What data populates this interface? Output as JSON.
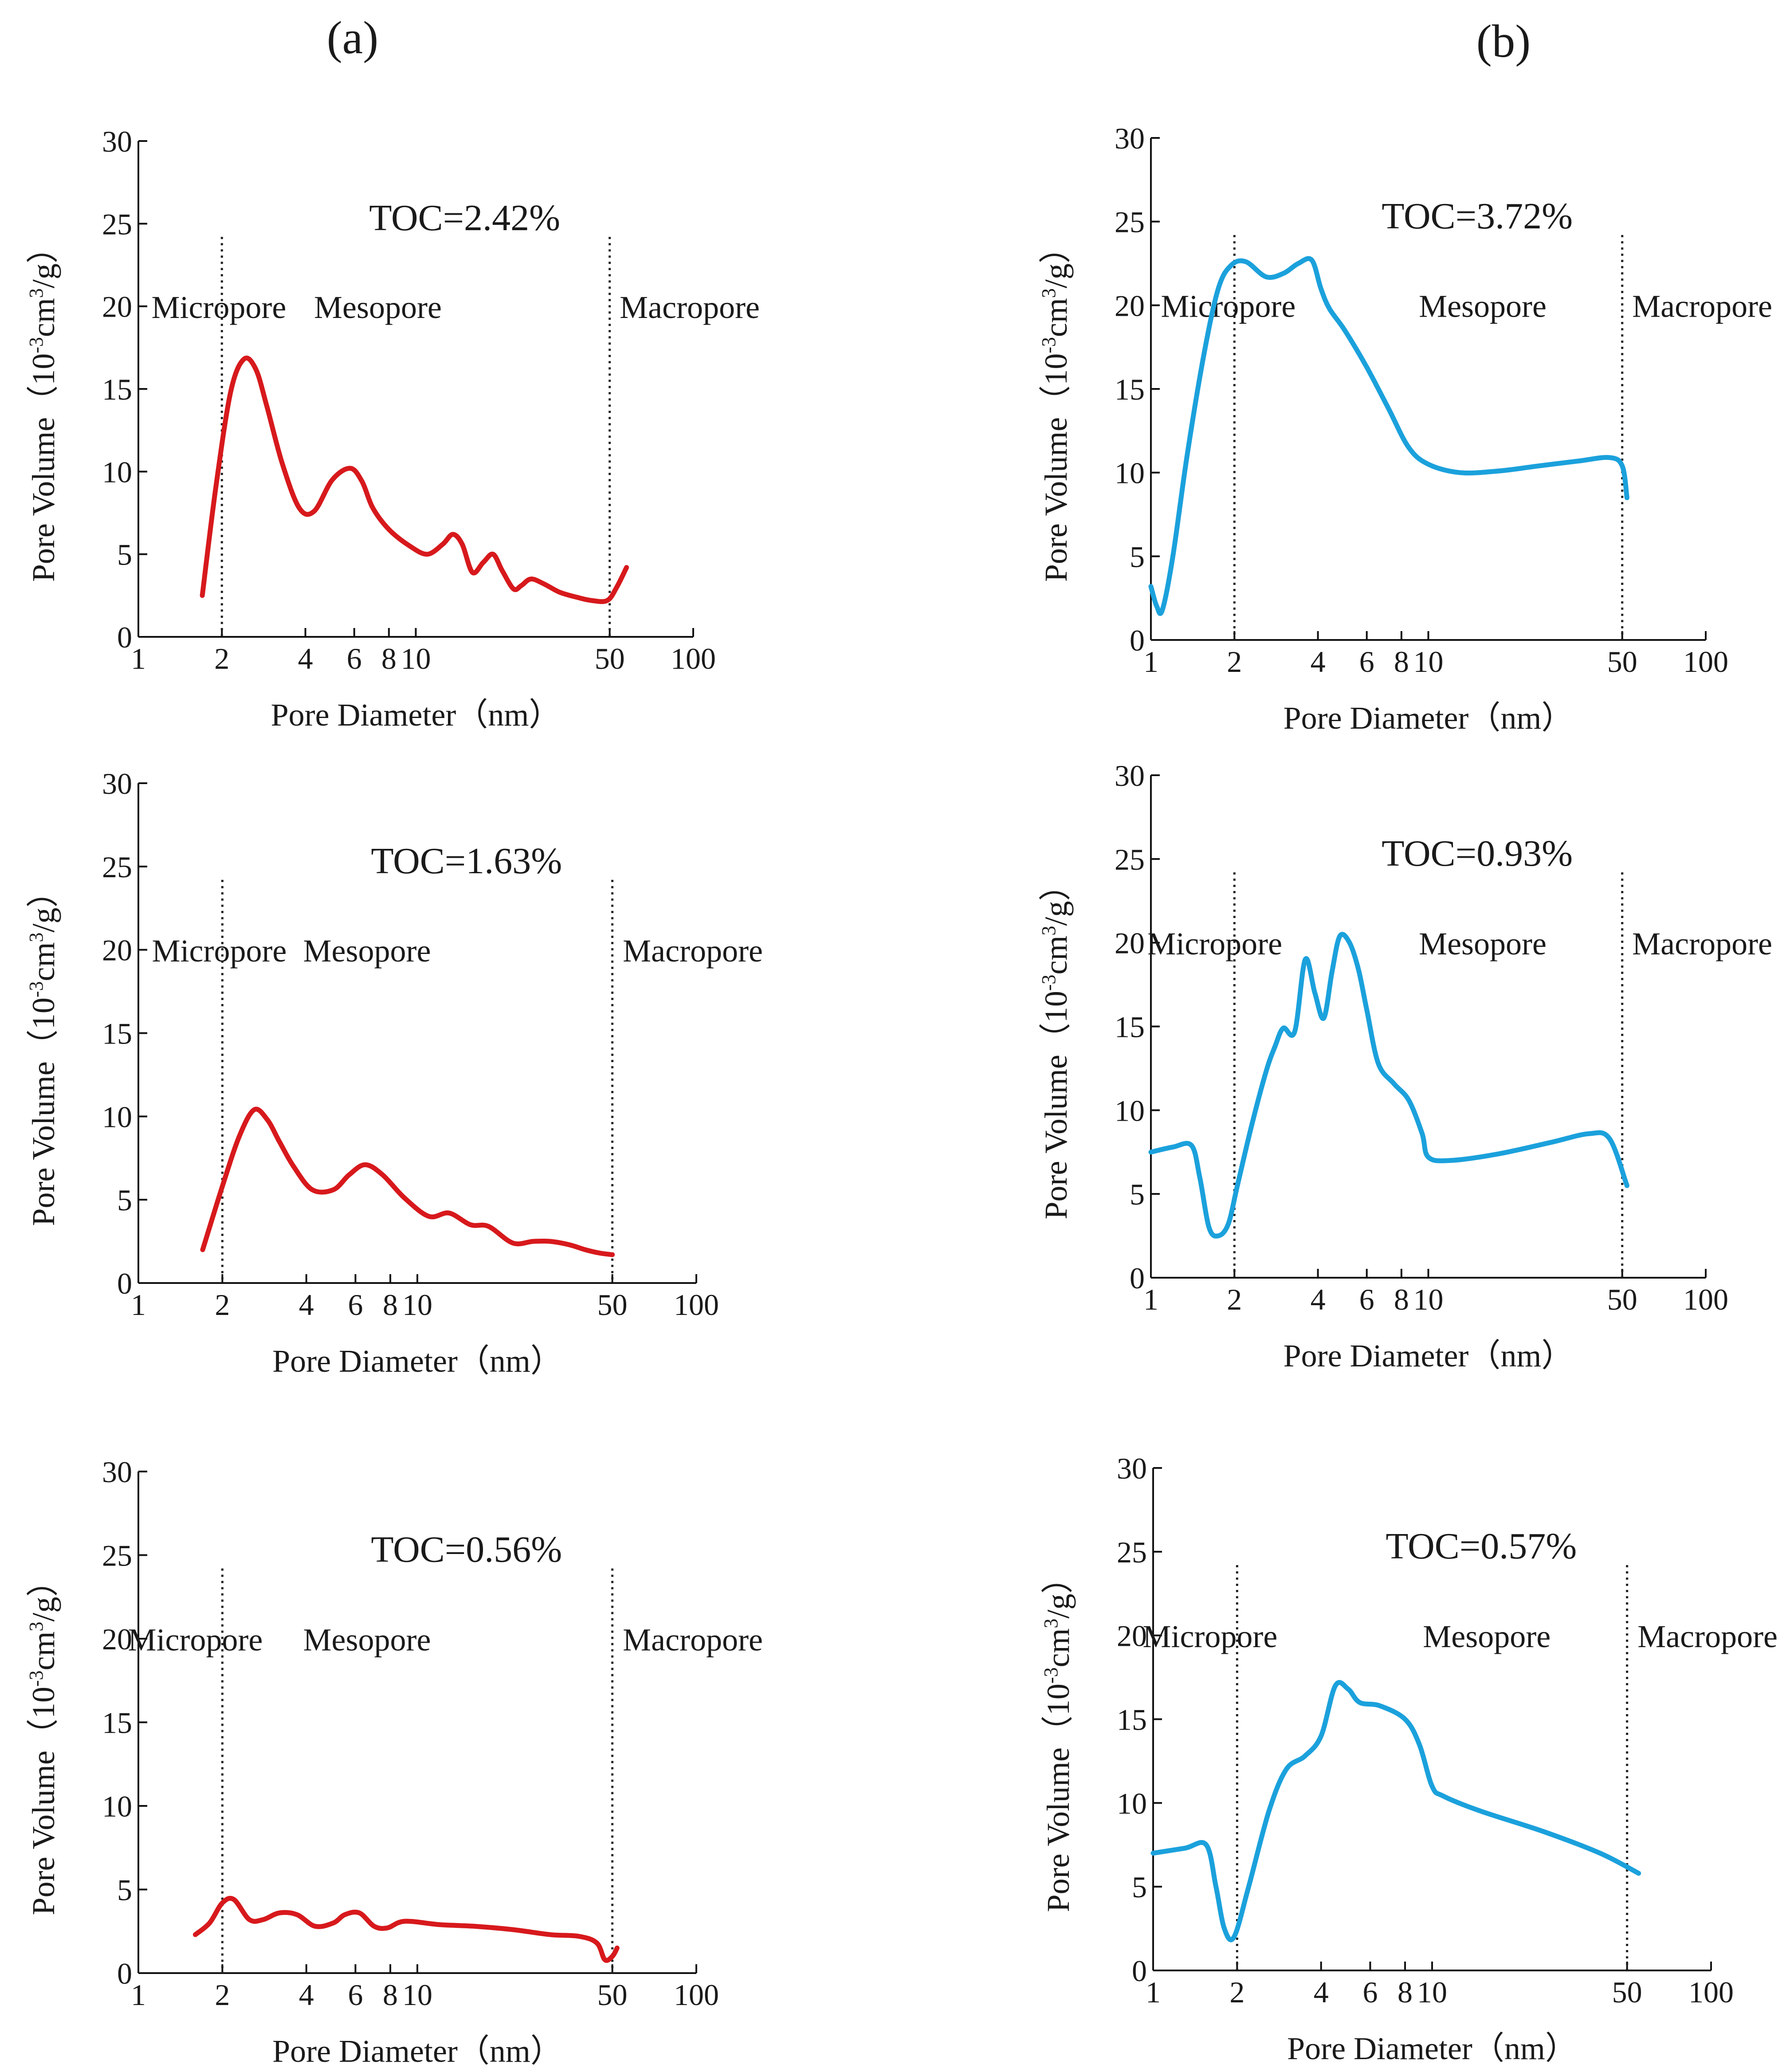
{
  "figure": {
    "column_labels": [
      "(a)",
      "(b)"
    ]
  },
  "chart_data": [
    {
      "type": "line",
      "column": "(a)",
      "title": "TOC=2.42%",
      "xlabel": "Pore Diameter（nm）",
      "ylabel_main": "Pore Volume（10",
      "ylabel_exp1": "-3",
      "ylabel_mid": "cm",
      "ylabel_exp2": "3",
      "ylabel_end": "/g）",
      "xscale": "log",
      "xlim": [
        1,
        100
      ],
      "ylim": [
        0,
        30
      ],
      "xticks": [
        1,
        2,
        4,
        6,
        8,
        10,
        50,
        100
      ],
      "xtick_labels": [
        "1",
        "2",
        "4",
        "6",
        "8",
        "10",
        "50",
        "100"
      ],
      "yticks": [
        0,
        5,
        10,
        15,
        20,
        25,
        30
      ],
      "ytick_labels": [
        "0",
        "5",
        "10",
        "15",
        "20",
        "25",
        "30"
      ],
      "boundaries": [
        2,
        50
      ],
      "regions": [
        {
          "label": "Micropore",
          "x": 1.95
        },
        {
          "label": "Mesopore",
          "x": 7.3
        },
        {
          "label": "Macropore",
          "x": 100
        }
      ],
      "line_color": "#d7191c",
      "series": [
        {
          "name": "TOC=2.42%",
          "x": [
            1.7,
            1.9,
            2.15,
            2.4,
            2.65,
            2.9,
            3.3,
            3.8,
            4.3,
            5.0,
            5.8,
            6.4,
            7.0,
            8.0,
            9.5,
            11,
            12.5,
            13.6,
            14.7,
            16,
            17.5,
            19,
            20.5,
            22.5,
            24,
            26,
            29,
            33,
            38,
            43,
            49,
            53,
            57.5
          ],
          "y": [
            2.5,
            9.0,
            14.8,
            16.8,
            16.2,
            14.0,
            10.5,
            7.8,
            7.6,
            9.5,
            10.2,
            9.4,
            7.8,
            6.5,
            5.5,
            5.0,
            5.6,
            6.2,
            5.6,
            3.9,
            4.5,
            5.0,
            4.0,
            2.9,
            3.1,
            3.5,
            3.2,
            2.7,
            2.4,
            2.2,
            2.2,
            3.0,
            4.2
          ]
        }
      ]
    },
    {
      "type": "line",
      "column": "(a)",
      "title": "TOC=1.63%",
      "xlabel": "Pore Diameter（nm）",
      "ylabel_main": "Pore Volume（10",
      "ylabel_exp1": "-3",
      "ylabel_mid": "cm",
      "ylabel_exp2": "3",
      "ylabel_end": "/g）",
      "xscale": "log",
      "xlim": [
        1,
        100
      ],
      "ylim": [
        0,
        30
      ],
      "xticks": [
        1,
        2,
        4,
        6,
        8,
        10,
        50,
        100
      ],
      "xtick_labels": [
        "1",
        "2",
        "4",
        "6",
        "8",
        "10",
        "50",
        "100"
      ],
      "yticks": [
        0,
        5,
        10,
        15,
        20,
        25,
        30
      ],
      "ytick_labels": [
        "0",
        "5",
        "10",
        "15",
        "20",
        "25",
        "30"
      ],
      "boundaries": [
        2,
        50
      ],
      "regions": [
        {
          "label": "Micropore",
          "x": 1.95
        },
        {
          "label": "Mesopore",
          "x": 6.6
        },
        {
          "label": "Macropore",
          "x": 100
        }
      ],
      "line_color": "#d7191c",
      "series": [
        {
          "name": "TOC=1.63%",
          "x": [
            1.7,
            2.0,
            2.3,
            2.6,
            2.9,
            3.2,
            3.6,
            4.2,
            5.0,
            5.7,
            6.5,
            7.5,
            9.0,
            11,
            13,
            15.5,
            18,
            22,
            26,
            30,
            35,
            40,
            45,
            50
          ],
          "y": [
            2.0,
            5.8,
            8.8,
            10.4,
            9.8,
            8.5,
            7.0,
            5.6,
            5.6,
            6.5,
            7.1,
            6.5,
            5.1,
            4.0,
            4.2,
            3.5,
            3.4,
            2.4,
            2.5,
            2.5,
            2.3,
            2.0,
            1.8,
            1.7
          ]
        }
      ]
    },
    {
      "type": "line",
      "column": "(a)",
      "title": "TOC=0.56%",
      "xlabel": "Pore Diameter（nm）",
      "ylabel_main": "Pore Volume（10",
      "ylabel_exp1": "-3",
      "ylabel_mid": "cm",
      "ylabel_exp2": "3",
      "ylabel_end": "/g）",
      "xscale": "log",
      "xlim": [
        1,
        100
      ],
      "ylim": [
        0,
        30
      ],
      "xticks": [
        1,
        2,
        4,
        6,
        8,
        10,
        50,
        100
      ],
      "xtick_labels": [
        "1",
        "2",
        "4",
        "6",
        "8",
        "10",
        "50",
        "100"
      ],
      "yticks": [
        0,
        5,
        10,
        15,
        20,
        25,
        30
      ],
      "ytick_labels": [
        "0",
        "5",
        "10",
        "15",
        "20",
        "25",
        "30"
      ],
      "boundaries": [
        2,
        50
      ],
      "regions": [
        {
          "label": "Micropore",
          "x": 1.6
        },
        {
          "label": "Mesopore",
          "x": 6.6
        },
        {
          "label": "Macropore",
          "x": 100
        }
      ],
      "line_color": "#d7191c",
      "series": [
        {
          "name": "TOC=0.56%",
          "x": [
            1.6,
            1.8,
            2.0,
            2.2,
            2.5,
            2.8,
            3.2,
            3.7,
            4.3,
            5.0,
            5.5,
            6.2,
            7.0,
            7.8,
            9.0,
            12,
            16,
            22,
            30,
            38,
            44,
            47,
            50,
            52
          ],
          "y": [
            2.3,
            3.0,
            4.2,
            4.4,
            3.2,
            3.2,
            3.6,
            3.5,
            2.8,
            3.0,
            3.5,
            3.6,
            2.8,
            2.7,
            3.1,
            2.9,
            2.8,
            2.6,
            2.3,
            2.2,
            1.8,
            0.8,
            1.0,
            1.5
          ]
        }
      ]
    },
    {
      "type": "line",
      "column": "(b)",
      "title": "TOC=3.72%",
      "xlabel": "Pore Diameter（nm）",
      "ylabel_main": "Pore Volume（10",
      "ylabel_exp1": "-3",
      "ylabel_mid": "cm",
      "ylabel_exp2": "3",
      "ylabel_end": "/g）",
      "xscale": "log",
      "xlim": [
        1,
        100
      ],
      "ylim": [
        0,
        30
      ],
      "xticks": [
        1,
        2,
        4,
        6,
        8,
        10,
        50,
        100
      ],
      "xtick_labels": [
        "1",
        "2",
        "4",
        "6",
        "8",
        "10",
        "50",
        "100"
      ],
      "yticks": [
        0,
        5,
        10,
        15,
        20,
        25,
        30
      ],
      "ytick_labels": [
        "0",
        "5",
        "10",
        "15",
        "20",
        "25",
        "30"
      ],
      "boundaries": [
        2,
        50
      ],
      "regions": [
        {
          "label": "Micropore",
          "x": 1.9
        },
        {
          "label": "Mesopore",
          "x": 15.7
        },
        {
          "label": "Macropore",
          "x": 100
        }
      ],
      "line_color": "#1ba1dc",
      "series": [
        {
          "name": "TOC=3.72%",
          "x": [
            1.0,
            1.05,
            1.1,
            1.2,
            1.35,
            1.55,
            1.75,
            1.95,
            2.2,
            2.6,
            3.0,
            3.4,
            3.8,
            4.1,
            4.4,
            5.0,
            6.0,
            7.2,
            8.5,
            10,
            13,
            18,
            25,
            35,
            45,
            50,
            52
          ],
          "y": [
            3.2,
            2.0,
            1.8,
            5.0,
            11.0,
            17.0,
            21.0,
            22.4,
            22.6,
            21.7,
            21.9,
            22.5,
            22.7,
            21.0,
            19.8,
            18.5,
            16.3,
            13.8,
            11.5,
            10.5,
            10.0,
            10.1,
            10.4,
            10.7,
            10.9,
            10.4,
            8.5
          ]
        }
      ]
    },
    {
      "type": "line",
      "column": "(b)",
      "title": "TOC=0.93%",
      "xlabel": "Pore Diameter（nm）",
      "ylabel_main": "Pore Volume（10",
      "ylabel_exp1": "-3",
      "ylabel_mid": "cm",
      "ylabel_exp2": "3",
      "ylabel_end": "/g）",
      "xscale": "log",
      "xlim": [
        1,
        100
      ],
      "ylim": [
        0,
        30
      ],
      "xticks": [
        1,
        2,
        4,
        6,
        8,
        10,
        50,
        100
      ],
      "xtick_labels": [
        "1",
        "2",
        "4",
        "6",
        "8",
        "10",
        "50",
        "100"
      ],
      "yticks": [
        0,
        5,
        10,
        15,
        20,
        25,
        30
      ],
      "ytick_labels": [
        "0",
        "5",
        "10",
        "15",
        "20",
        "25",
        "30"
      ],
      "boundaries": [
        2,
        50
      ],
      "regions": [
        {
          "label": "Micropore",
          "x": 1.7
        },
        {
          "label": "Mesopore",
          "x": 15.7
        },
        {
          "label": "Macropore",
          "x": 100
        }
      ],
      "line_color": "#1ba1dc",
      "series": [
        {
          "name": "TOC=0.93%",
          "x": [
            1.0,
            1.2,
            1.4,
            1.5,
            1.62,
            1.75,
            1.9,
            2.05,
            2.3,
            2.6,
            2.8,
            3.0,
            3.3,
            3.6,
            3.9,
            4.2,
            4.5,
            4.8,
            5.2,
            5.6,
            6.0,
            6.6,
            7.5,
            8.5,
            9.5,
            10,
            12,
            18,
            28,
            38,
            45,
            52
          ],
          "y": [
            7.5,
            7.8,
            7.9,
            6.0,
            3.0,
            2.5,
            3.2,
            5.5,
            9.0,
            12.3,
            13.8,
            14.9,
            14.7,
            19.0,
            17.0,
            15.5,
            18.3,
            20.4,
            20.0,
            18.4,
            16.0,
            12.8,
            11.6,
            10.6,
            8.6,
            7.2,
            7.0,
            7.4,
            8.1,
            8.6,
            8.3,
            5.5
          ]
        }
      ]
    },
    {
      "type": "line",
      "column": "(b)",
      "title": "TOC=0.57%",
      "xlabel": "Pore Diameter（nm）",
      "ylabel_main": "Pore Volume（10",
      "ylabel_exp1": "-3",
      "ylabel_mid": "cm",
      "ylabel_exp2": "3",
      "ylabel_end": "/g）",
      "xscale": "log",
      "xlim": [
        1,
        100
      ],
      "ylim": [
        0,
        30
      ],
      "xticks": [
        1,
        2,
        4,
        6,
        8,
        10,
        50,
        100
      ],
      "xtick_labels": [
        "1",
        "2",
        "4",
        "6",
        "8",
        "10",
        "50",
        "100"
      ],
      "yticks": [
        0,
        5,
        10,
        15,
        20,
        25,
        30
      ],
      "ytick_labels": [
        "0",
        "5",
        "10",
        "15",
        "20",
        "25",
        "30"
      ],
      "boundaries": [
        2,
        50
      ],
      "regions": [
        {
          "label": "Micropore",
          "x": 1.6
        },
        {
          "label": "Mesopore",
          "x": 15.7
        },
        {
          "label": "Macropore",
          "x": 100
        }
      ],
      "line_color": "#1ba1dc",
      "series": [
        {
          "name": "TOC=0.57%",
          "x": [
            1.0,
            1.3,
            1.55,
            1.68,
            1.8,
            1.95,
            2.2,
            2.6,
            3.0,
            3.5,
            4.0,
            4.5,
            5.0,
            5.5,
            6.5,
            8.0,
            9.0,
            10,
            11,
            15,
            25,
            40,
            55
          ],
          "y": [
            7.0,
            7.3,
            7.5,
            5.0,
            2.5,
            2.0,
            5.0,
            9.5,
            12.0,
            12.8,
            14.0,
            17.0,
            16.8,
            16.0,
            15.8,
            15.0,
            13.5,
            11.0,
            10.4,
            9.5,
            8.3,
            7.0,
            5.8
          ]
        }
      ]
    }
  ]
}
